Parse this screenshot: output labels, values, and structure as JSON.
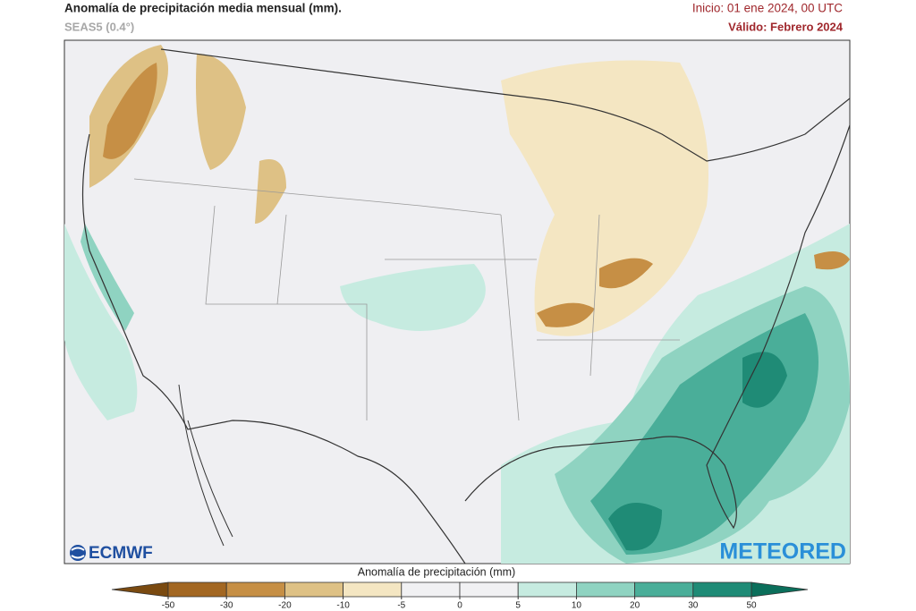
{
  "header": {
    "title": "Anomalía de precipitación media mensual (mm).",
    "model": "SEAS5 (0.4°)",
    "init": "Inicio: 01 ene 2024, 00 UTC",
    "valid": "Válido: Febrero 2024"
  },
  "logos": {
    "left": "ECMWF",
    "right": "METEORED"
  },
  "colorbar": {
    "title": "Anomalía de precipitación (mm)",
    "ticks": [
      -50,
      -30,
      -20,
      -10,
      -5,
      0,
      5,
      10,
      20,
      30,
      50
    ],
    "colors": [
      "#7a4a10",
      "#a36722",
      "#c68f45",
      "#dec185",
      "#f4e6c2",
      "#f1f1f3",
      "#f1f1f3",
      "#c6ebe0",
      "#8fd3c1",
      "#4aae99",
      "#1f8b76",
      "#0b6f5b"
    ]
  }
}
